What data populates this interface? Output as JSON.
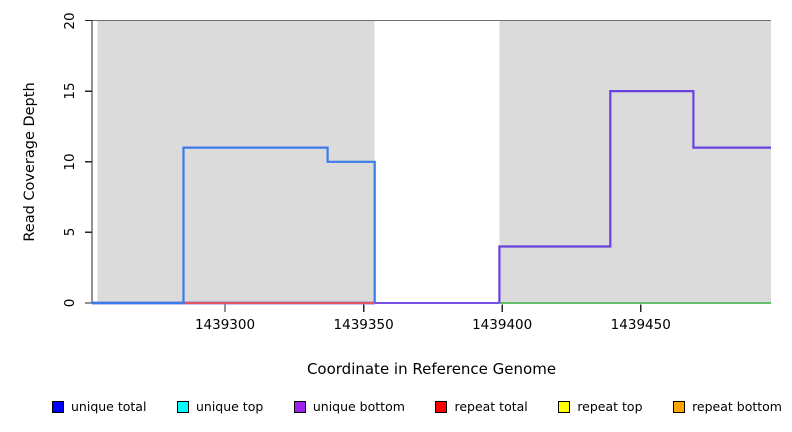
{
  "chart_data": {
    "type": "line",
    "subtype": "step-coverage-plot",
    "title": "",
    "xlabel": "Coordinate in Reference Genome",
    "ylabel": "Read Coverage Depth",
    "x_range": [
      1439252,
      1439497
    ],
    "y_range": [
      0,
      20
    ],
    "x_ticks": [
      1439300,
      1439350,
      1439400,
      1439450
    ],
    "y_ticks": [
      0,
      5,
      10,
      15,
      20
    ],
    "grid": false,
    "legend_position": "bottom",
    "background_regions": [
      {
        "name": "shaded-region-left",
        "from": 1439254,
        "to": 1439354,
        "color": "#DBDBDB"
      },
      {
        "name": "shaded-region-right",
        "from": 1439399,
        "to": 1439497,
        "color": "#DBDBDB"
      }
    ],
    "top_reference_line": {
      "depth": 20,
      "color": "#6F6F6F"
    },
    "series": [
      {
        "name": "unique total",
        "color": "#0000FF",
        "segments": [
          {
            "from": 1439252,
            "to": 1439285,
            "depth": 0
          },
          {
            "from": 1439285,
            "to": 1439337,
            "depth": 11
          },
          {
            "from": 1439337,
            "to": 1439354,
            "depth": 10
          },
          {
            "from": 1439354,
            "to": 1439497,
            "depth": 0
          }
        ]
      },
      {
        "name": "unique top",
        "color": "#00FFFF",
        "segments": [
          {
            "from": 1439252,
            "to": 1439497,
            "depth": 0
          }
        ]
      },
      {
        "name": "unique bottom",
        "color": "#A020F0",
        "segments": [
          {
            "from": 1439252,
            "to": 1439399,
            "depth": 0
          },
          {
            "from": 1439399,
            "to": 1439439,
            "depth": 4
          },
          {
            "from": 1439439,
            "to": 1439469,
            "depth": 15
          },
          {
            "from": 1439469,
            "to": 1439497,
            "depth": 11
          }
        ]
      },
      {
        "name": "repeat total",
        "color": "#FF0000",
        "segments": [
          {
            "from": 1439285,
            "to": 1439354,
            "depth": 0
          }
        ]
      },
      {
        "name": "repeat top",
        "color": "#FFFF00",
        "segments": [
          {
            "from": 1439252,
            "to": 1439497,
            "depth": 0
          }
        ]
      },
      {
        "name": "repeat bottom",
        "color": "#FFA500",
        "segments": [
          {
            "from": 1439252,
            "to": 1439497,
            "depth": 0
          }
        ]
      }
    ],
    "render_lines": [
      {
        "name": "unique-bottom-baseline-underlay",
        "color": "#9186E4",
        "width": 3,
        "points": [
          [
            1439252,
            0
          ],
          [
            1439354,
            0
          ]
        ]
      },
      {
        "name": "repeat-total-line",
        "color": "#E25560",
        "width": 2,
        "points": [
          [
            1439285,
            0
          ],
          [
            1439354,
            0
          ]
        ]
      },
      {
        "name": "unique-total-line",
        "color": "#3D7BE8",
        "width": 2.2,
        "points": [
          [
            1439252,
            0
          ],
          [
            1439285,
            0
          ],
          [
            1439285,
            11
          ],
          [
            1439337,
            11
          ],
          [
            1439337,
            10
          ],
          [
            1439354,
            10
          ],
          [
            1439354,
            0
          ]
        ]
      },
      {
        "name": "gap-baseline-line",
        "color": "#7450E0",
        "width": 2,
        "points": [
          [
            1439354,
            0
          ],
          [
            1439399,
            0
          ]
        ]
      },
      {
        "name": "overlap-baseline-line",
        "color": "#62C06C",
        "width": 2,
        "points": [
          [
            1439399,
            0
          ],
          [
            1439497,
            0
          ]
        ]
      },
      {
        "name": "unique-bottom-line",
        "color": "#6B40DF",
        "width": 2.2,
        "points": [
          [
            1439399,
            0
          ],
          [
            1439399,
            4
          ],
          [
            1439439,
            4
          ],
          [
            1439439,
            15
          ],
          [
            1439469,
            15
          ],
          [
            1439469,
            11
          ],
          [
            1439497,
            11
          ]
        ]
      }
    ],
    "legend": [
      {
        "label": "unique total",
        "color": "#0000FF"
      },
      {
        "label": "unique top",
        "color": "#00FFFF"
      },
      {
        "label": "unique bottom",
        "color": "#A020F0"
      },
      {
        "label": "repeat total",
        "color": "#FF0000"
      },
      {
        "label": "repeat top",
        "color": "#FFFF00"
      },
      {
        "label": "repeat bottom",
        "color": "#FFA500"
      }
    ]
  }
}
